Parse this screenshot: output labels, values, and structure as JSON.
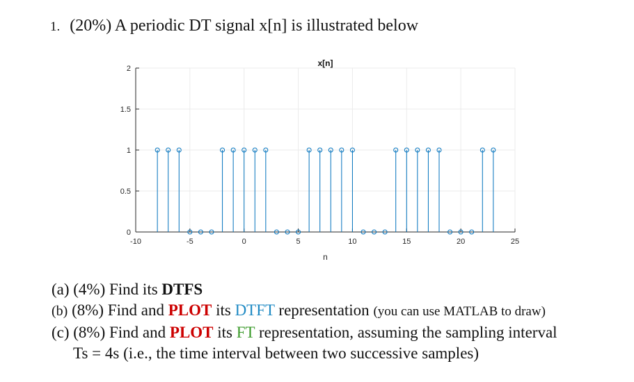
{
  "question": {
    "number": "1.",
    "text": "(20%) A periodic DT signal x[n] is illustrated below"
  },
  "chart_data": {
    "type": "stem",
    "title": "x[n]",
    "xlabel": "n",
    "ylabel": "",
    "xlim": [
      -10,
      25
    ],
    "ylim": [
      0,
      2
    ],
    "xticks": [
      -10,
      -5,
      0,
      5,
      10,
      15,
      20,
      25
    ],
    "yticks": [
      0,
      0.5,
      1,
      1.5,
      2
    ],
    "ytick_labels": [
      "0",
      "0.5",
      "1",
      "1.5",
      "2"
    ],
    "grid": true,
    "color": "#0072bd",
    "n": [
      -8,
      -7,
      -6,
      -5,
      -4,
      -3,
      -2,
      -1,
      0,
      1,
      2,
      3,
      4,
      5,
      6,
      7,
      8,
      9,
      10,
      11,
      12,
      13,
      14,
      15,
      16,
      17,
      18,
      19,
      20,
      21,
      22,
      23
    ],
    "values": [
      1,
      1,
      1,
      0,
      0,
      0,
      1,
      1,
      1,
      1,
      1,
      0,
      0,
      0,
      1,
      1,
      1,
      1,
      1,
      0,
      0,
      0,
      1,
      1,
      1,
      1,
      1,
      0,
      0,
      0,
      1,
      1
    ]
  },
  "parts": {
    "a": {
      "prefix": "(a) (4%) Find its ",
      "bold": "DTFS"
    },
    "b": {
      "label": "(b)",
      "pre": " (8%) Find and ",
      "plot": "PLOT",
      "its": " its ",
      "dtft": "DTFT",
      "rep": " representation ",
      "note": "(you can use MATLAB to draw)"
    },
    "c": {
      "pre": "(c) (8%) Find and ",
      "plot": "PLOT",
      "its": " its ",
      "ft": "FT",
      "rest": " representation, assuming the sampling interval",
      "line2": "Ts = 4s (i.e., the time interval between two successive samples)"
    }
  },
  "colors": {
    "red": "#cc0000",
    "blue": "#1f8ac4",
    "green": "#3a9a2a"
  }
}
